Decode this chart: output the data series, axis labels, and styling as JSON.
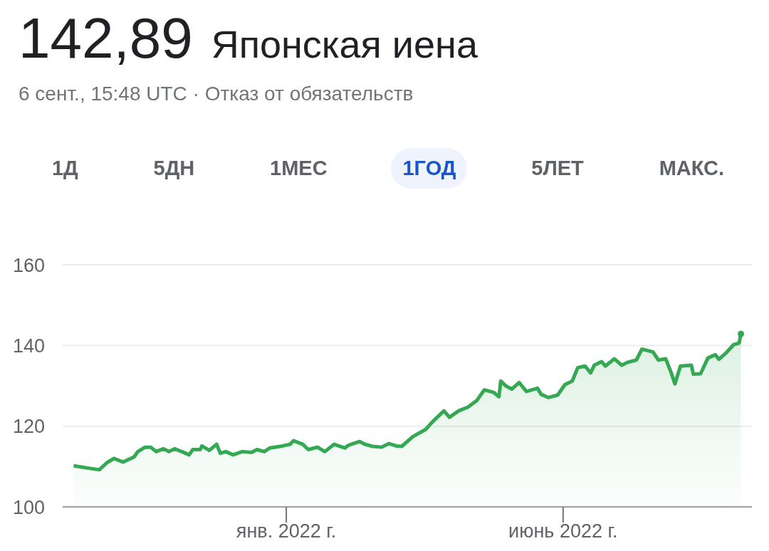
{
  "chart_data": {
    "type": "area",
    "title": "142,89 Японская иена",
    "subtitle": "6 сент., 15:48 UTC · Отказ от обязательств",
    "annotations": [
      "1Д",
      "5ДН",
      "1МЕС",
      "1ГОД",
      "5ЛЕТ",
      "МАКС."
    ],
    "xlim": [
      "2021-09-01",
      "2022-09-12"
    ],
    "xticks": [
      {
        "value": "2022-01-01",
        "label": "янв. 2022 г."
      },
      {
        "value": "2022-06-01",
        "label": "июнь 2022 г."
      }
    ],
    "ylim": [
      100,
      160
    ],
    "yticks": [
      100,
      120,
      140,
      160
    ],
    "grid": "y",
    "legend": false,
    "marker": "none",
    "line_style": "solid",
    "series": [
      {
        "color": "#34a853",
        "x": [
          "2021-09-07",
          "2021-09-15",
          "2021-09-21",
          "2021-09-25",
          "2021-09-29",
          "2021-10-04",
          "2021-10-10",
          "2021-10-12",
          "2021-10-16",
          "2021-10-19",
          "2021-10-22",
          "2021-10-26",
          "2021-10-29",
          "2021-11-01",
          "2021-11-05",
          "2021-11-09",
          "2021-11-11",
          "2021-11-15",
          "2021-11-16",
          "2021-11-20",
          "2021-11-24",
          "2021-11-26",
          "2021-11-29",
          "2021-12-03",
          "2021-12-08",
          "2021-12-13",
          "2021-12-16",
          "2021-12-20",
          "2021-12-23",
          "2021-12-30",
          "2022-01-03",
          "2022-01-05",
          "2022-01-10",
          "2022-01-13",
          "2022-01-18",
          "2022-01-22",
          "2022-01-27",
          "2022-02-02",
          "2022-02-04",
          "2022-02-10",
          "2022-02-13",
          "2022-02-17",
          "2022-02-22",
          "2022-02-26",
          "2022-03-02",
          "2022-03-05",
          "2022-03-11",
          "2022-03-18",
          "2022-03-22",
          "2022-03-28",
          "2022-03-31",
          "2022-04-05",
          "2022-04-10",
          "2022-04-15",
          "2022-04-19",
          "2022-04-24",
          "2022-04-27",
          "2022-04-28",
          "2022-05-01",
          "2022-05-04",
          "2022-05-08",
          "2022-05-12",
          "2022-05-18",
          "2022-05-20",
          "2022-05-24",
          "2022-05-29",
          "2022-06-02",
          "2022-06-06",
          "2022-06-09",
          "2022-06-13",
          "2022-06-16",
          "2022-06-18",
          "2022-06-22",
          "2022-06-24",
          "2022-06-29",
          "2022-07-03",
          "2022-07-06",
          "2022-07-11",
          "2022-07-14",
          "2022-07-20",
          "2022-07-23",
          "2022-07-27",
          "2022-07-30",
          "2022-08-01",
          "2022-08-04",
          "2022-08-10",
          "2022-08-11",
          "2022-08-15",
          "2022-08-19",
          "2022-08-23",
          "2022-08-25",
          "2022-08-29",
          "2022-09-02",
          "2022-09-05",
          "2022-09-06"
        ],
        "values": [
          110.2,
          109.6,
          109.2,
          110.9,
          112.0,
          111.1,
          112.4,
          113.7,
          114.8,
          114.8,
          113.7,
          114.4,
          113.7,
          114.4,
          113.7,
          112.9,
          114.2,
          114.2,
          115.1,
          114.0,
          115.5,
          113.3,
          113.7,
          112.9,
          113.7,
          113.5,
          114.2,
          113.7,
          114.6,
          115.1,
          115.5,
          116.4,
          115.5,
          114.2,
          114.8,
          113.7,
          115.5,
          114.6,
          115.3,
          116.2,
          115.5,
          115.0,
          114.8,
          115.7,
          115.1,
          115.0,
          117.4,
          119.2,
          121.2,
          123.8,
          122.2,
          123.8,
          124.7,
          126.4,
          129.0,
          128.4,
          127.3,
          131.2,
          129.9,
          129.2,
          130.8,
          128.6,
          129.4,
          127.9,
          127.1,
          127.7,
          130.3,
          131.2,
          134.5,
          134.9,
          133.2,
          135.1,
          136.0,
          134.9,
          136.7,
          135.1,
          135.8,
          136.4,
          139.1,
          138.4,
          136.4,
          136.7,
          133.2,
          130.5,
          134.9,
          135.1,
          132.9,
          133.0,
          136.9,
          137.7,
          136.6,
          138.2,
          140.2,
          140.6,
          142.89
        ]
      },
      {
        "type": "scatter",
        "marker": "circle",
        "color": "#34a853",
        "x": [
          "2022-09-06"
        ],
        "values": [
          142.89
        ]
      }
    ]
  }
}
